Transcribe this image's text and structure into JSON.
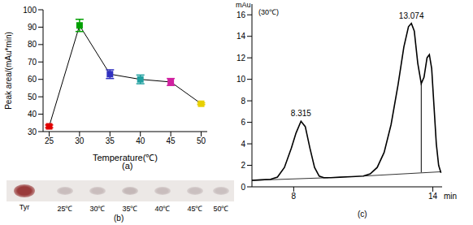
{
  "chart_data": [
    {
      "type": "line",
      "caption": "(a)",
      "x_label": "Temperature(℃)",
      "y_label": "Peak area/(mAu*min)",
      "x": [
        25,
        30,
        35,
        40,
        45,
        50
      ],
      "values": [
        33,
        91,
        63,
        60,
        58.5,
        46
      ],
      "error": [
        0.8,
        3.5,
        2.5,
        2.5,
        2,
        0.5
      ],
      "color": "#000000",
      "colors": [
        "#e00000",
        "#00a000",
        "#3030c0",
        "#20a0a0",
        "#d020a0",
        "#e8d000"
      ],
      "marker": "square",
      "xlim": [
        24,
        51
      ],
      "xticks": [
        25,
        30,
        35,
        40,
        45,
        50
      ],
      "ylim": [
        30,
        100
      ],
      "yticks": [
        30,
        40,
        50,
        60,
        70,
        80,
        90,
        100
      ],
      "grid": false
    },
    {
      "type": "line",
      "caption": "(c)",
      "subtitle": "(30℃)",
      "y_label": "mAu",
      "x_label": "min",
      "x": [
        6.2,
        6.6,
        7.0,
        7.3,
        7.6,
        7.9,
        8.1,
        8.315,
        8.5,
        8.7,
        8.9,
        9.1,
        9.3,
        9.6,
        10.0,
        10.5,
        11.0,
        11.3,
        11.6,
        11.9,
        12.2,
        12.5,
        12.75,
        12.95,
        13.074,
        13.2,
        13.35,
        13.5,
        13.62,
        13.75,
        13.85,
        13.95,
        14.05,
        14.15,
        14.25,
        14.35
      ],
      "values": [
        0.6,
        0.65,
        0.7,
        0.9,
        1.8,
        3.6,
        5.0,
        6.1,
        5.6,
        3.6,
        1.8,
        1.0,
        0.85,
        0.85,
        0.9,
        0.95,
        1.0,
        1.2,
        1.8,
        3.2,
        5.8,
        9.5,
        13.0,
        14.9,
        15.2,
        14.5,
        11.5,
        9.6,
        10.2,
        12.0,
        12.3,
        11.0,
        7.5,
        4.0,
        2.0,
        1.3
      ],
      "color": "#000000",
      "annotations": [
        {
          "text": "8.315",
          "x": 8.315,
          "y": 6.1
        },
        {
          "text": "13.074",
          "x": 13.074,
          "y": 15.2
        }
      ],
      "baseline": {
        "x": [
          6.2,
          9.5,
          10.2,
          11.0,
          14.35
        ],
        "values": [
          0.6,
          0.85,
          null,
          1.0,
          1.4
        ]
      },
      "drop_line": {
        "x": 13.5,
        "values": [
          1.35,
          9.6
        ]
      },
      "xlim": [
        6.2,
        14.4
      ],
      "xticks": [
        8,
        14
      ],
      "ylim": [
        0,
        17
      ],
      "yticks": [
        0,
        2,
        4,
        6,
        8,
        10,
        12,
        14,
        16
      ],
      "grid": false
    }
  ],
  "image_strip": {
    "labels": [
      "Tyr",
      "25℃",
      "30℃",
      "35℃",
      "40℃",
      "45℃",
      "50℃"
    ],
    "caption": "(b)",
    "colors": [
      "#9a3b3b",
      "#c9bdbd",
      "#c9bdbd",
      "#c4b8b8",
      "#c9bdbd",
      "#cac0c0",
      "#cac0c0"
    ]
  }
}
